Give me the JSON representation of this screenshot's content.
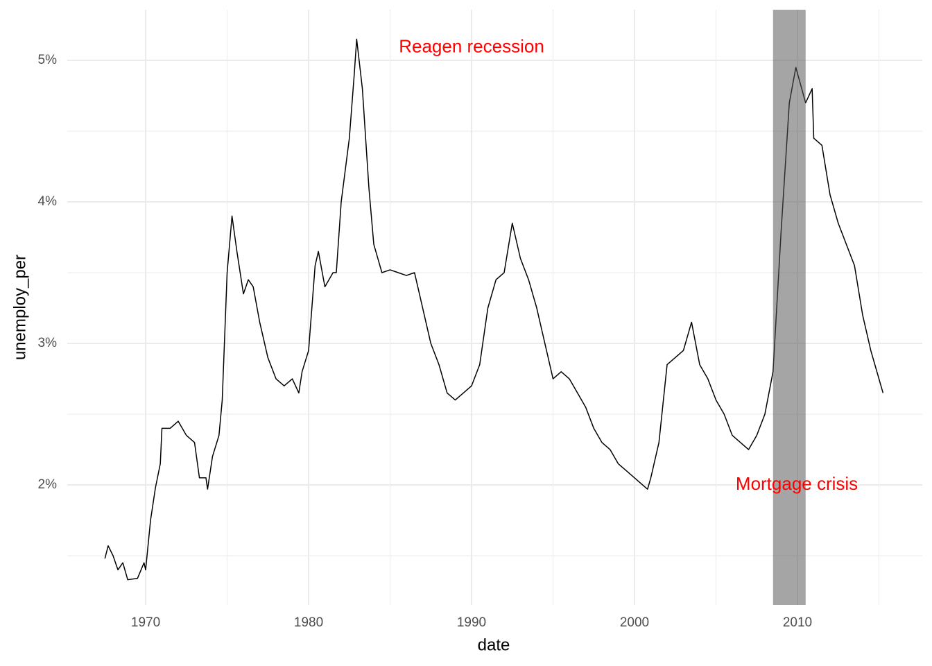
{
  "chart_data": {
    "type": "line",
    "x_label": "date",
    "y_label": "unemploy_per",
    "xlim": [
      1965.19,
      2017.66
    ],
    "ylim": [
      1.152,
      5.358
    ],
    "xticks": [
      1970,
      1980,
      1990,
      2000,
      2010
    ],
    "x_minor_ticks": [
      1975,
      1985,
      1995,
      2005,
      2015
    ],
    "yticks": [
      {
        "value": 2,
        "label": "2%"
      },
      {
        "value": 3,
        "label": "3%"
      },
      {
        "value": 4,
        "label": "4%"
      },
      {
        "value": 5,
        "label": "5%"
      }
    ],
    "y_minor_ticks": [
      1.5,
      2.5,
      3.5,
      4.5
    ],
    "grid": true,
    "shade": {
      "xmin": 2008.5,
      "xmax": 2010.5,
      "color": "#555555",
      "opacity": 0.53
    },
    "annotations": [
      {
        "text": "Reagen recession",
        "x": 1990,
        "y": 5.09,
        "color": "#ff0000"
      },
      {
        "text": "Mortgage crisis",
        "x": 2009.96,
        "y": 2.0,
        "color": "#ff0000"
      }
    ],
    "series": [
      {
        "color": "#000000",
        "x": [
          1967.5,
          1967.7,
          1968.0,
          1968.3,
          1968.6,
          1968.9,
          1969.5,
          1969.9,
          1970.0,
          1970.3,
          1970.6,
          1970.9,
          1971.0,
          1971.5,
          1972.0,
          1972.5,
          1973.0,
          1973.3,
          1973.7,
          1973.8,
          1974.1,
          1974.5,
          1974.7,
          1975.0,
          1975.3,
          1975.6,
          1976.0,
          1976.3,
          1976.6,
          1977.0,
          1977.5,
          1978.0,
          1978.5,
          1979.0,
          1979.4,
          1979.6,
          1980.0,
          1980.4,
          1980.6,
          1981.0,
          1981.5,
          1981.7,
          1982.0,
          1982.5,
          1982.8,
          1982.95,
          1983.3,
          1983.7,
          1984.0,
          1984.5,
          1985.0,
          1985.5,
          1986.0,
          1986.5,
          1987.0,
          1987.5,
          1988.0,
          1988.5,
          1989.0,
          1989.5,
          1990.0,
          1990.5,
          1991.0,
          1991.5,
          1992.0,
          1992.5,
          1993.0,
          1993.5,
          1994.0,
          1994.5,
          1995.0,
          1995.5,
          1996.0,
          1996.5,
          1997.0,
          1997.5,
          1998.0,
          1998.5,
          1999.0,
          1999.5,
          2000.0,
          2000.5,
          2000.8,
          2001.0,
          2001.5,
          2002.0,
          2002.5,
          2003.0,
          2003.5,
          2004.0,
          2004.5,
          2005.0,
          2005.5,
          2006.0,
          2006.5,
          2007.0,
          2007.5,
          2008.0,
          2008.5,
          2009.0,
          2009.5,
          2009.9,
          2010.5,
          2010.9,
          2011.0,
          2011.5,
          2012.0,
          2012.5,
          2013.0,
          2013.5,
          2014.0,
          2014.5,
          2015.0,
          2015.25
        ],
        "values": [
          1.48,
          1.57,
          1.5,
          1.4,
          1.45,
          1.33,
          1.34,
          1.45,
          1.4,
          1.75,
          1.98,
          2.15,
          2.4,
          2.4,
          2.45,
          2.35,
          2.3,
          2.05,
          2.05,
          1.97,
          2.2,
          2.35,
          2.6,
          3.5,
          3.9,
          3.65,
          3.35,
          3.45,
          3.4,
          3.15,
          2.9,
          2.75,
          2.7,
          2.75,
          2.65,
          2.8,
          2.95,
          3.55,
          3.65,
          3.4,
          3.5,
          3.5,
          4.0,
          4.45,
          4.9,
          5.15,
          4.8,
          4.1,
          3.7,
          3.5,
          3.52,
          3.5,
          3.48,
          3.5,
          3.25,
          3.0,
          2.85,
          2.65,
          2.6,
          2.65,
          2.7,
          2.85,
          3.25,
          3.45,
          3.5,
          3.85,
          3.6,
          3.45,
          3.25,
          3.0,
          2.75,
          2.8,
          2.75,
          2.65,
          2.55,
          2.4,
          2.3,
          2.25,
          2.15,
          2.1,
          2.05,
          2.0,
          1.97,
          2.05,
          2.3,
          2.85,
          2.9,
          2.95,
          3.15,
          2.85,
          2.75,
          2.6,
          2.5,
          2.35,
          2.3,
          2.25,
          2.35,
          2.5,
          2.8,
          3.8,
          4.7,
          4.95,
          4.7,
          4.8,
          4.45,
          4.4,
          4.05,
          3.85,
          3.7,
          3.55,
          3.2,
          2.95,
          2.75,
          2.65
        ]
      }
    ]
  }
}
